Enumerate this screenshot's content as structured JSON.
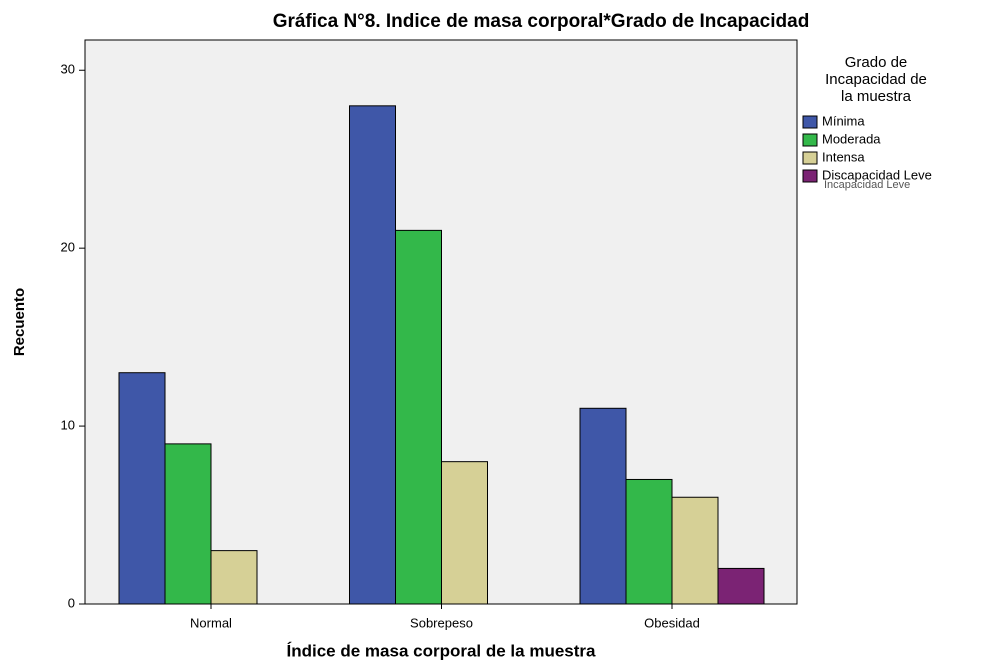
{
  "chart_data": {
    "type": "bar",
    "title": "Gráfica N°8. Indice de masa corporal*Grado de Incapacidad",
    "x_label": "Índice de masa corporal de la muestra",
    "y_label": "Recuento",
    "categories": [
      "Normal",
      "Sobrepeso",
      "Obesidad"
    ],
    "series": [
      {
        "name": "Mínima",
        "color": "#3f57a8",
        "values": [
          13,
          28,
          11
        ]
      },
      {
        "name": "Moderada",
        "color": "#33b84a",
        "values": [
          9,
          21,
          7
        ]
      },
      {
        "name": "Intensa",
        "color": "#d6d096",
        "values": [
          3,
          8,
          6
        ]
      },
      {
        "name": "Discapacidad Leve",
        "color": "#7b2374",
        "values": [
          null,
          null,
          2
        ]
      }
    ],
    "legend_title": [
      "Grado de",
      "Incapacidad de",
      "la muestra"
    ],
    "legend_overlay": "Incapacidad Leve",
    "legend_position": "right",
    "ylim": [
      0,
      31.7
    ],
    "yticks": [
      0,
      10,
      20,
      30
    ],
    "grid": false
  }
}
